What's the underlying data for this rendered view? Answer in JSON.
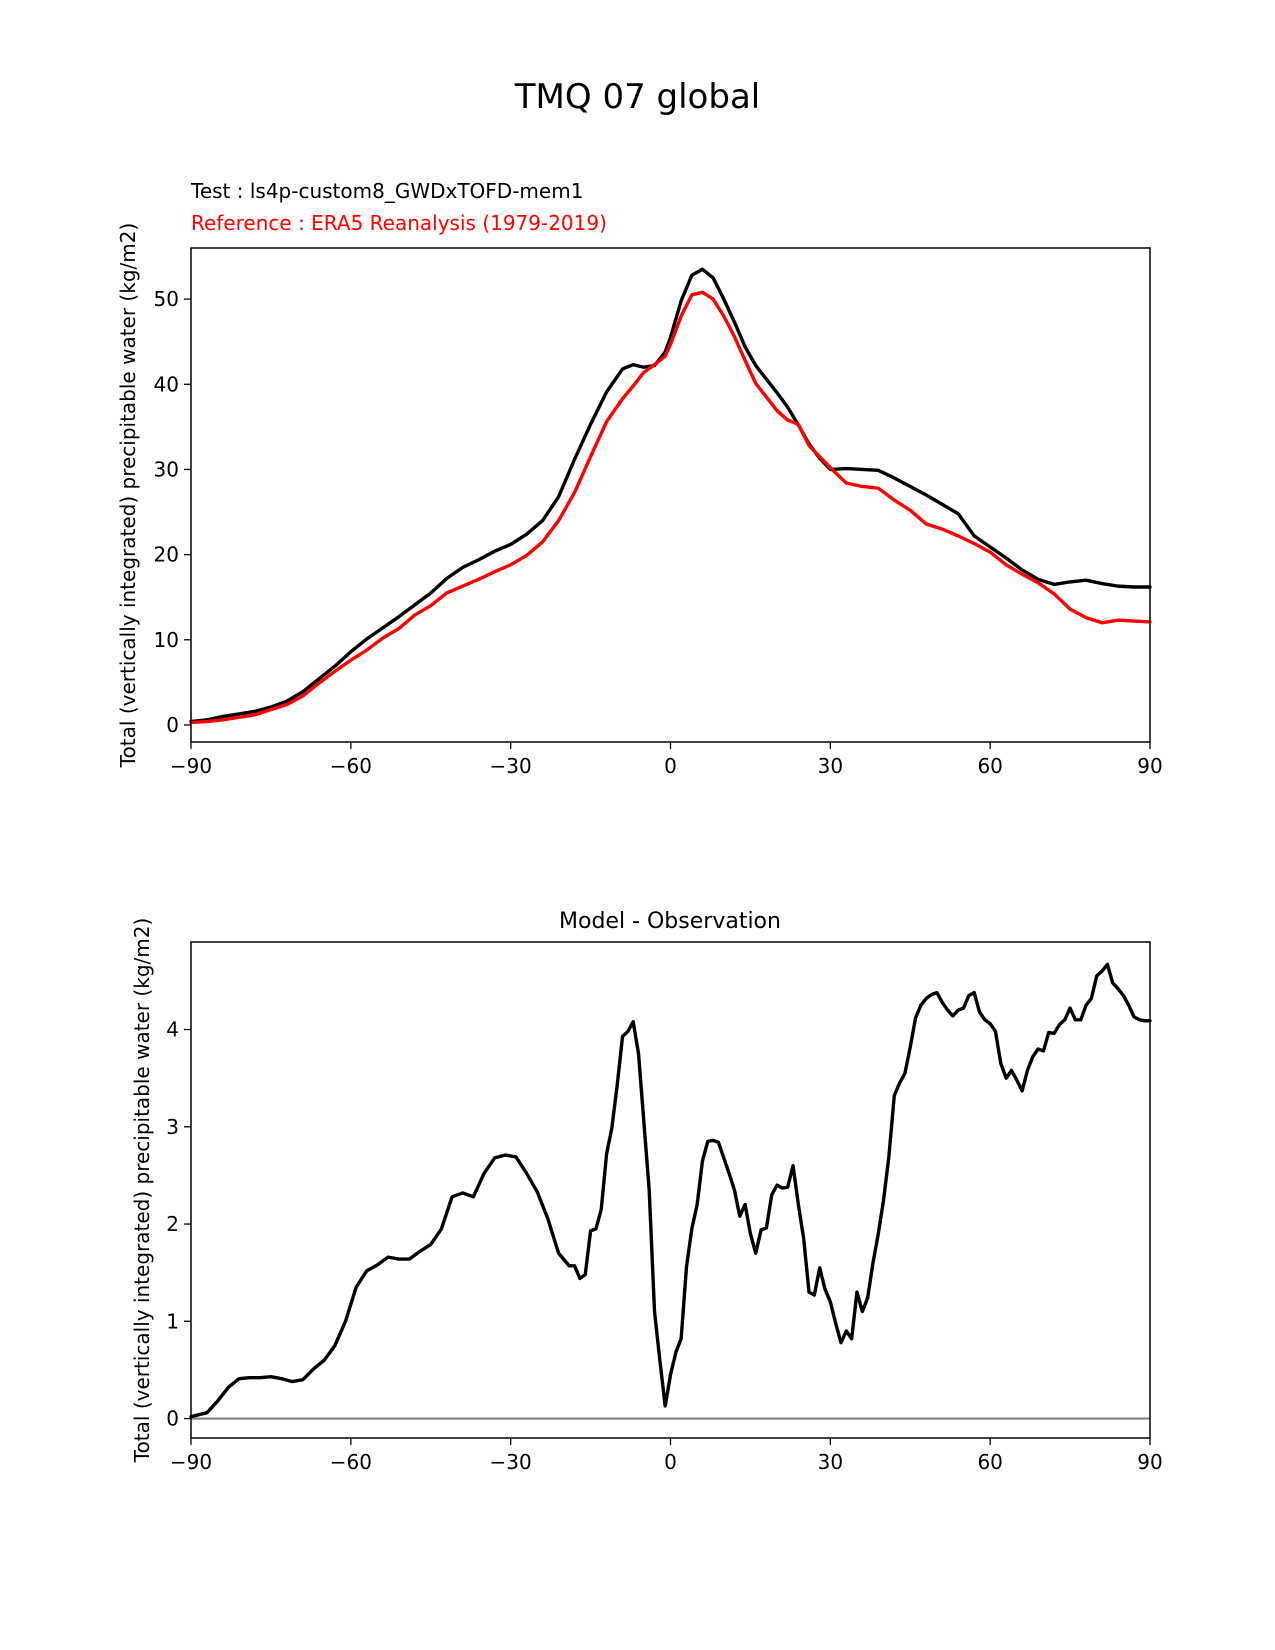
{
  "figure": {
    "title": "TMQ 07 global",
    "width": 1275,
    "height": 1650
  },
  "chart_data": [
    {
      "type": "line",
      "title_test": "Test : ls4p-custom8_GWDxTOFD-mem1",
      "title_reference": "Reference : ERA5 Reanalysis (1979-2019)",
      "xlabel": "",
      "ylabel": "Total (vertically integrated) precipitable water (kg/m2)",
      "xlim": [
        -90,
        90
      ],
      "ylim": [
        -2,
        56
      ],
      "xticks": [
        -90,
        -60,
        -30,
        0,
        30,
        60,
        90
      ],
      "xtick_labels": [
        "−90",
        "−60",
        "−30",
        "0",
        "30",
        "60",
        "90"
      ],
      "yticks": [
        0,
        10,
        20,
        30,
        40,
        50
      ],
      "ytick_labels": [
        "0",
        "10",
        "20",
        "30",
        "40",
        "50"
      ],
      "series": [
        {
          "name": "Test",
          "color": "#000000",
          "x": [
            -90,
            -87,
            -84,
            -81,
            -78,
            -75,
            -72,
            -69,
            -66,
            -63,
            -60,
            -57,
            -54,
            -51,
            -48,
            -45,
            -42,
            -39,
            -36,
            -33,
            -30,
            -27,
            -24,
            -21,
            -18,
            -15,
            -12,
            -9,
            -7,
            -5,
            -3,
            -1,
            0,
            2,
            4,
            6,
            8,
            10,
            12,
            14,
            16,
            18,
            20,
            22,
            24,
            26,
            28,
            30,
            33,
            36,
            39,
            42,
            45,
            48,
            51,
            54,
            57,
            60,
            63,
            66,
            69,
            72,
            75,
            78,
            81,
            84,
            87,
            90
          ],
          "y": [
            0.4,
            0.6,
            1.0,
            1.3,
            1.6,
            2.1,
            2.8,
            3.9,
            5.4,
            6.9,
            8.6,
            10.1,
            11.4,
            12.7,
            14.1,
            15.5,
            17.2,
            18.5,
            19.4,
            20.4,
            21.2,
            22.4,
            24.0,
            26.8,
            31.2,
            35.3,
            39.1,
            41.8,
            42.3,
            42.0,
            42.2,
            43.8,
            45.5,
            49.8,
            52.8,
            53.5,
            52.5,
            50.0,
            47.3,
            44.4,
            42.2,
            40.6,
            39.0,
            37.3,
            35.2,
            33.0,
            31.3,
            30.0,
            30.1,
            30.0,
            29.9,
            29.0,
            28.0,
            27.0,
            25.9,
            24.8,
            22.2,
            20.9,
            19.6,
            18.2,
            17.1,
            16.5,
            16.8,
            17.0,
            16.6,
            16.3,
            16.2,
            16.2
          ]
        },
        {
          "name": "Reference",
          "color": "#ff0000",
          "x": [
            -90,
            -87,
            -84,
            -81,
            -78,
            -75,
            -72,
            -69,
            -66,
            -63,
            -60,
            -57,
            -54,
            -51,
            -48,
            -45,
            -42,
            -39,
            -36,
            -33,
            -30,
            -27,
            -24,
            -21,
            -18,
            -15,
            -12,
            -9,
            -7,
            -5,
            -3,
            -1,
            0,
            2,
            4,
            6,
            8,
            10,
            12,
            14,
            16,
            18,
            20,
            22,
            24,
            26,
            28,
            30,
            33,
            36,
            39,
            42,
            45,
            48,
            51,
            54,
            57,
            60,
            63,
            66,
            69,
            72,
            75,
            78,
            81,
            84,
            87,
            90
          ],
          "y": [
            0.3,
            0.4,
            0.6,
            0.9,
            1.2,
            1.8,
            2.4,
            3.4,
            4.9,
            6.3,
            7.6,
            8.8,
            10.2,
            11.3,
            12.9,
            14.0,
            15.5,
            16.3,
            17.1,
            18.0,
            18.8,
            19.9,
            21.5,
            24.0,
            27.3,
            31.5,
            35.6,
            38.3,
            39.8,
            41.4,
            42.3,
            43.3,
            44.7,
            48.0,
            50.5,
            50.8,
            50.0,
            48.0,
            45.6,
            42.8,
            40.1,
            38.5,
            36.9,
            35.8,
            35.3,
            32.8,
            31.5,
            30.2,
            28.4,
            28.0,
            27.8,
            26.4,
            25.2,
            23.6,
            23.0,
            22.2,
            21.3,
            20.3,
            18.8,
            17.7,
            16.7,
            15.4,
            13.6,
            12.6,
            12.0,
            12.3,
            12.2,
            12.1
          ]
        }
      ]
    },
    {
      "type": "line",
      "title": "Model - Observation",
      "xlabel": "",
      "ylabel": "Total (vertically integrated) precipitable water (kg/m2)",
      "xlim": [
        -90,
        90
      ],
      "ylim": [
        -0.2,
        4.9
      ],
      "xticks": [
        -90,
        -60,
        -30,
        0,
        30,
        60,
        90
      ],
      "xtick_labels": [
        "−90",
        "−60",
        "−30",
        "0",
        "30",
        "60",
        "90"
      ],
      "yticks": [
        0,
        1,
        2,
        3,
        4
      ],
      "ytick_labels": [
        "0",
        "1",
        "2",
        "3",
        "4"
      ],
      "zero_line_color": "#808080",
      "series": [
        {
          "name": "Model - Observation",
          "color": "#000000",
          "x": [
            -90,
            -87,
            -85,
            -83,
            -81,
            -79,
            -77,
            -75,
            -73,
            -71,
            -69,
            -67,
            -65,
            -63,
            -61,
            -59,
            -57,
            -55,
            -53,
            -51,
            -49,
            -47,
            -45,
            -43,
            -41,
            -39,
            -37,
            -35,
            -33,
            -31,
            -29,
            -27,
            -25,
            -23,
            -21,
            -19,
            -18,
            -17,
            -16,
            -15,
            -14,
            -13,
            -12,
            -11,
            -10,
            -9,
            -8,
            -7,
            -6,
            -5,
            -4,
            -3,
            -2,
            -1,
            0,
            1,
            2,
            3,
            4,
            5,
            6,
            7,
            8,
            9,
            10,
            11,
            12,
            13,
            14,
            15,
            16,
            17,
            18,
            19,
            20,
            21,
            22,
            23,
            24,
            25,
            26,
            27,
            28,
            29,
            30,
            31,
            32,
            33,
            34,
            35,
            36,
            37,
            38,
            39,
            40,
            41,
            42,
            43,
            44,
            45,
            46,
            47,
            48,
            49,
            50,
            51,
            52,
            53,
            54,
            55,
            56,
            57,
            58,
            59,
            60,
            61,
            62,
            63,
            64,
            65,
            66,
            67,
            68,
            69,
            70,
            71,
            72,
            73,
            74,
            75,
            76,
            77,
            78,
            79,
            80,
            81,
            82,
            83,
            84,
            85,
            86,
            87,
            88,
            89,
            90
          ],
          "y": [
            0.02,
            0.06,
            0.18,
            0.32,
            0.41,
            0.42,
            0.42,
            0.43,
            0.41,
            0.38,
            0.4,
            0.51,
            0.6,
            0.75,
            1.0,
            1.35,
            1.52,
            1.58,
            1.66,
            1.64,
            1.64,
            1.72,
            1.79,
            1.95,
            2.28,
            2.32,
            2.28,
            2.52,
            2.68,
            2.71,
            2.69,
            2.52,
            2.33,
            2.05,
            1.7,
            1.57,
            1.57,
            1.44,
            1.48,
            1.93,
            1.95,
            2.15,
            2.72,
            2.99,
            3.43,
            3.93,
            3.98,
            4.08,
            3.75,
            3.05,
            2.35,
            1.1,
            0.6,
            0.13,
            0.45,
            0.68,
            0.82,
            1.56,
            1.95,
            2.2,
            2.65,
            2.85,
            2.86,
            2.84,
            2.68,
            2.52,
            2.35,
            2.08,
            2.2,
            1.9,
            1.7,
            1.94,
            1.96,
            2.3,
            2.4,
            2.37,
            2.38,
            2.6,
            2.2,
            1.85,
            1.3,
            1.27,
            1.55,
            1.33,
            1.2,
            0.98,
            0.78,
            0.9,
            0.82,
            1.3,
            1.1,
            1.24,
            1.6,
            1.9,
            2.25,
            2.7,
            3.32,
            3.45,
            3.55,
            3.82,
            4.12,
            4.25,
            4.32,
            4.36,
            4.38,
            4.28,
            4.2,
            4.14,
            4.2,
            4.22,
            4.35,
            4.38,
            4.18,
            4.1,
            4.06,
            3.98,
            3.65,
            3.5,
            3.58,
            3.48,
            3.37,
            3.58,
            3.72,
            3.8,
            3.78,
            3.97,
            3.96,
            4.05,
            4.1,
            4.22,
            4.1,
            4.1,
            4.25,
            4.32,
            4.55,
            4.6,
            4.67,
            4.48,
            4.42,
            4.35,
            4.25,
            4.13,
            4.1,
            4.09,
            4.09
          ]
        }
      ]
    }
  ]
}
